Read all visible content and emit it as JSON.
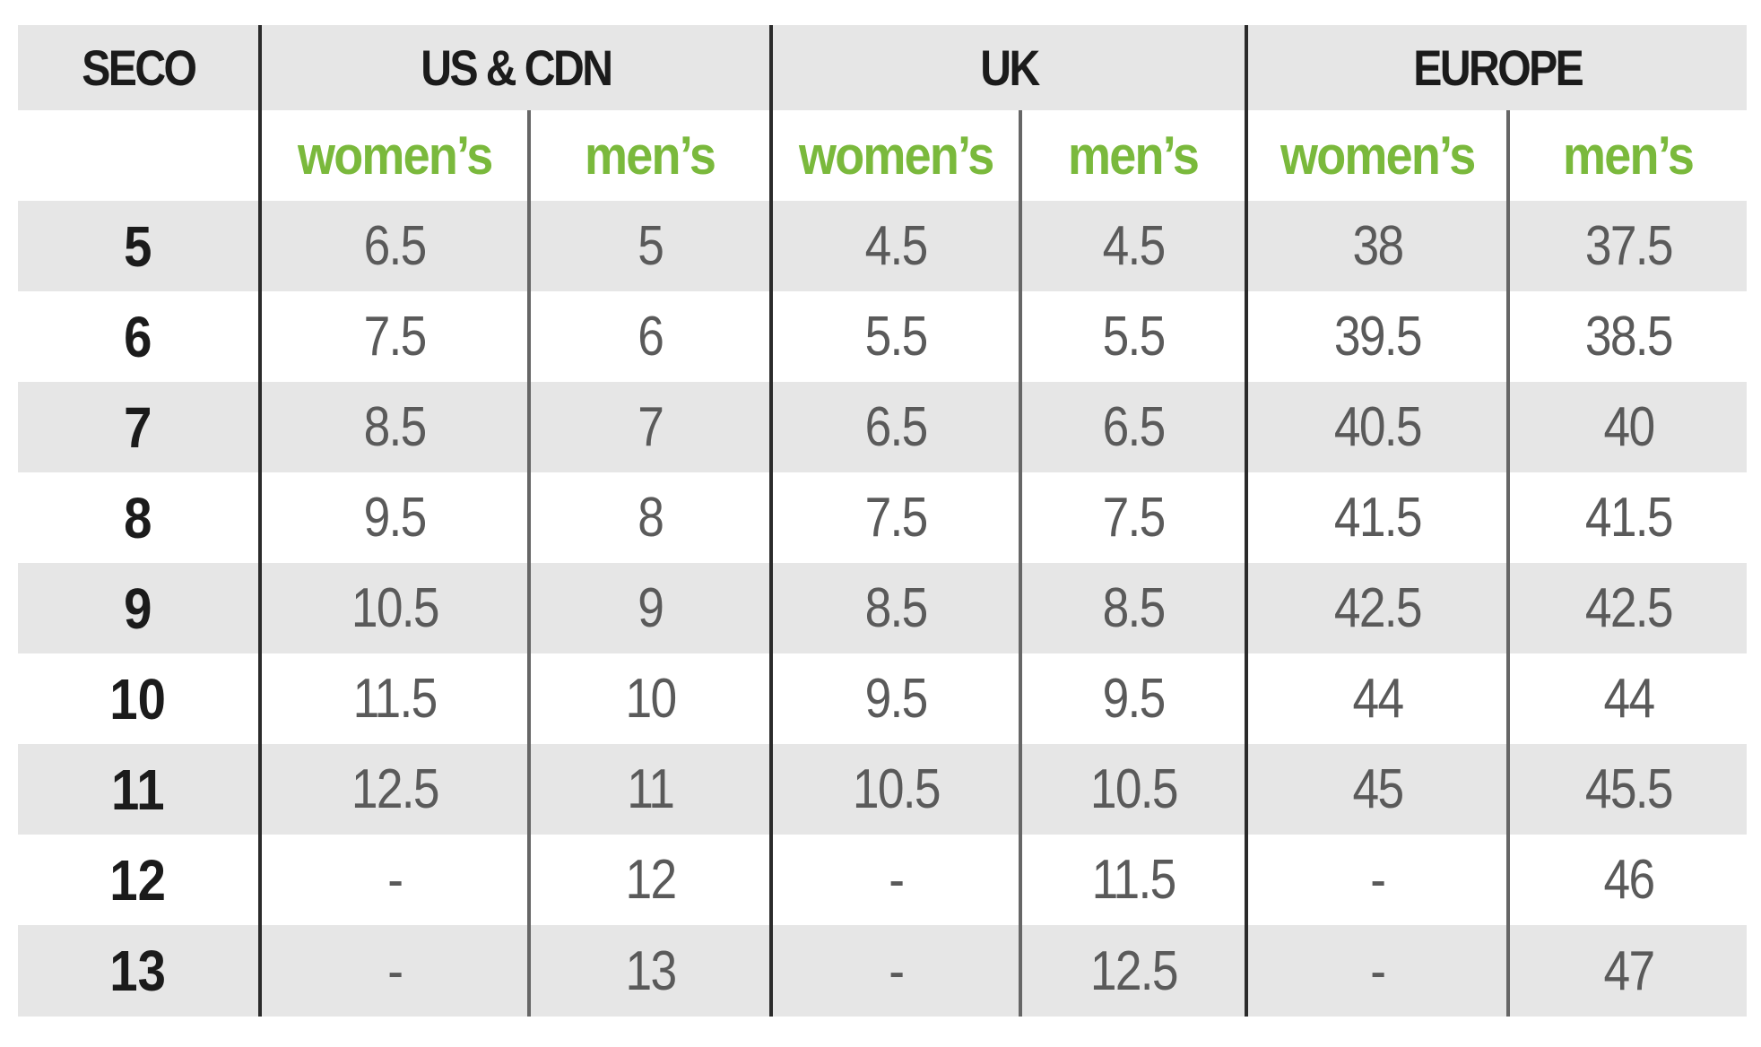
{
  "chart_data": {
    "type": "table",
    "title": "",
    "group_headers": [
      {
        "label": "SECO",
        "span": 1
      },
      {
        "label": "US & CDN",
        "span": 2
      },
      {
        "label": "UK",
        "span": 2
      },
      {
        "label": "EUROPE",
        "span": 2
      }
    ],
    "sub_headers": [
      "",
      "women’s",
      "men’s",
      "women’s",
      "men’s",
      "women’s",
      "men’s"
    ],
    "rows": [
      {
        "seco": "5",
        "values": [
          "6.5",
          "5",
          "4.5",
          "4.5",
          "38",
          "37.5"
        ]
      },
      {
        "seco": "6",
        "values": [
          "7.5",
          "6",
          "5.5",
          "5.5",
          "39.5",
          "38.5"
        ]
      },
      {
        "seco": "7",
        "values": [
          "8.5",
          "7",
          "6.5",
          "6.5",
          "40.5",
          "40"
        ]
      },
      {
        "seco": "8",
        "values": [
          "9.5",
          "8",
          "7.5",
          "7.5",
          "41.5",
          "41.5"
        ]
      },
      {
        "seco": "9",
        "values": [
          "10.5",
          "9",
          "8.5",
          "8.5",
          "42.5",
          "42.5"
        ]
      },
      {
        "seco": "10",
        "values": [
          "11.5",
          "10",
          "9.5",
          "9.5",
          "44",
          "44"
        ]
      },
      {
        "seco": "11",
        "values": [
          "12.5",
          "11",
          "10.5",
          "10.5",
          "45",
          "45.5"
        ]
      },
      {
        "seco": "12",
        "values": [
          "-",
          "12",
          "-",
          "11.5",
          "-",
          "46"
        ]
      },
      {
        "seco": "13",
        "values": [
          "-",
          "13",
          "-",
          "12.5",
          "-",
          "47"
        ]
      }
    ]
  },
  "colors": {
    "row_stripe": "#e6e6e6",
    "gender_label": "#7ab93c",
    "header_text": "#1b1b1b",
    "value_text": "#5a5a5a",
    "divider": "#2b2b2b"
  }
}
